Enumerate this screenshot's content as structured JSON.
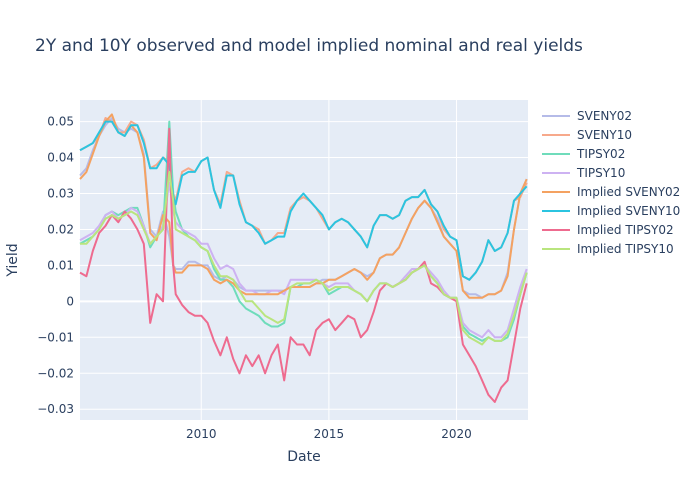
{
  "chart_data": {
    "type": "line",
    "title": "2Y and 10Y observed and model implied nominal and real yields",
    "xlabel": "Date",
    "ylabel": "Yield",
    "xlim": [
      2005.25,
      2022.8
    ],
    "ylim": [
      -0.033,
      0.056
    ],
    "x_ticks": [
      2010,
      2015,
      2020
    ],
    "x_tick_labels": [
      "2010",
      "2015",
      "2020"
    ],
    "y_ticks": [
      -0.03,
      -0.02,
      -0.01,
      0,
      0.01,
      0.02,
      0.03,
      0.04,
      0.05
    ],
    "y_tick_labels": [
      "−0.03",
      "−0.02",
      "−0.01",
      "0",
      "0.01",
      "0.02",
      "0.03",
      "0.04",
      "0.05"
    ],
    "grid": true,
    "legend_position": "right",
    "x": [
      2005.25,
      2005.5,
      2005.75,
      2006.0,
      2006.25,
      2006.5,
      2006.75,
      2007.0,
      2007.25,
      2007.5,
      2007.75,
      2008.0,
      2008.25,
      2008.5,
      2008.75,
      2008.9,
      2009.0,
      2009.25,
      2009.5,
      2009.75,
      2010.0,
      2010.25,
      2010.5,
      2010.75,
      2011.0,
      2011.25,
      2011.5,
      2011.75,
      2012.0,
      2012.25,
      2012.5,
      2012.75,
      2013.0,
      2013.25,
      2013.5,
      2013.75,
      2014.0,
      2014.25,
      2014.5,
      2014.75,
      2015.0,
      2015.25,
      2015.5,
      2015.75,
      2016.0,
      2016.25,
      2016.5,
      2016.75,
      2017.0,
      2017.25,
      2017.5,
      2017.75,
      2018.0,
      2018.25,
      2018.5,
      2018.75,
      2019.0,
      2019.25,
      2019.5,
      2019.75,
      2020.0,
      2020.25,
      2020.5,
      2020.75,
      2021.0,
      2021.25,
      2021.5,
      2021.75,
      2022.0,
      2022.25,
      2022.5,
      2022.75
    ],
    "series": [
      {
        "name": "SVENY02",
        "color": "#b5bbe8",
        "values": [
          0.035,
          0.037,
          0.042,
          0.046,
          0.049,
          0.051,
          0.048,
          0.047,
          0.048,
          0.047,
          0.041,
          0.02,
          0.018,
          0.025,
          0.018,
          0.01,
          0.009,
          0.009,
          0.011,
          0.011,
          0.01,
          0.01,
          0.007,
          0.006,
          0.007,
          0.006,
          0.004,
          0.003,
          0.003,
          0.003,
          0.003,
          0.003,
          0.003,
          0.003,
          0.004,
          0.004,
          0.004,
          0.004,
          0.005,
          0.006,
          0.006,
          0.006,
          0.007,
          0.008,
          0.009,
          0.008,
          0.007,
          0.008,
          0.012,
          0.013,
          0.013,
          0.015,
          0.019,
          0.023,
          0.026,
          0.028,
          0.026,
          0.023,
          0.018,
          0.016,
          0.014,
          0.003,
          0.002,
          0.002,
          0.001,
          0.002,
          0.002,
          0.003,
          0.008,
          0.02,
          0.03,
          0.034
        ]
      },
      {
        "name": "SVENY10",
        "color": "#f7a98b",
        "values": [
          0.042,
          0.043,
          0.044,
          0.046,
          0.051,
          0.05,
          0.047,
          0.047,
          0.05,
          0.049,
          0.045,
          0.037,
          0.038,
          0.04,
          0.039,
          0.03,
          0.028,
          0.036,
          0.037,
          0.036,
          0.039,
          0.04,
          0.031,
          0.027,
          0.036,
          0.035,
          0.028,
          0.022,
          0.021,
          0.02,
          0.016,
          0.017,
          0.019,
          0.019,
          0.026,
          0.028,
          0.029,
          0.028,
          0.026,
          0.023,
          0.02,
          0.022,
          0.023,
          0.022,
          0.02,
          0.018,
          0.015,
          0.021,
          0.024,
          0.024,
          0.023,
          0.024,
          0.028,
          0.029,
          0.029,
          0.031,
          0.027,
          0.025,
          0.02,
          0.018,
          0.017,
          0.007,
          0.006,
          0.008,
          0.011,
          0.017,
          0.014,
          0.015,
          0.019,
          0.028,
          0.029,
          0.033
        ]
      },
      {
        "name": "TIPSY02",
        "color": "#6fdcbb",
        "values": [
          0.016,
          0.017,
          0.018,
          0.02,
          0.024,
          0.025,
          0.024,
          0.025,
          0.026,
          0.026,
          0.021,
          0.015,
          0.018,
          0.02,
          0.05,
          0.03,
          0.025,
          0.02,
          0.018,
          0.017,
          0.015,
          0.014,
          0.009,
          0.006,
          0.006,
          0.004,
          0.0,
          -0.002,
          -0.003,
          -0.004,
          -0.006,
          -0.007,
          -0.007,
          -0.006,
          0.004,
          0.004,
          0.005,
          0.005,
          0.006,
          0.005,
          0.002,
          0.003,
          0.004,
          0.004,
          0.003,
          0.002,
          0.0,
          0.003,
          0.005,
          0.005,
          0.004,
          0.005,
          0.006,
          0.008,
          0.009,
          0.01,
          0.007,
          0.005,
          0.002,
          0.001,
          0.001,
          -0.007,
          -0.009,
          -0.01,
          -0.011,
          -0.01,
          -0.011,
          -0.011,
          -0.01,
          -0.005,
          0.002,
          0.008
        ]
      },
      {
        "name": "TIPSY10",
        "color": "#cdb2f2",
        "values": [
          0.017,
          0.018,
          0.019,
          0.021,
          0.024,
          0.025,
          0.023,
          0.024,
          0.026,
          0.025,
          0.021,
          0.016,
          0.018,
          0.021,
          0.033,
          0.025,
          0.022,
          0.02,
          0.019,
          0.018,
          0.016,
          0.016,
          0.012,
          0.009,
          0.01,
          0.009,
          0.005,
          0.003,
          0.003,
          0.002,
          0.002,
          0.003,
          0.003,
          0.002,
          0.006,
          0.006,
          0.006,
          0.006,
          0.006,
          0.005,
          0.004,
          0.005,
          0.005,
          0.005,
          0.003,
          0.002,
          0.0,
          0.003,
          0.005,
          0.005,
          0.004,
          0.005,
          0.007,
          0.009,
          0.009,
          0.01,
          0.008,
          0.006,
          0.003,
          0.001,
          0.001,
          -0.006,
          -0.008,
          -0.009,
          -0.01,
          -0.008,
          -0.01,
          -0.01,
          -0.008,
          -0.002,
          0.004,
          0.009
        ]
      },
      {
        "name": "Implied SVENY02",
        "color": "#f4a261",
        "values": [
          0.034,
          0.036,
          0.041,
          0.046,
          0.05,
          0.052,
          0.047,
          0.046,
          0.049,
          0.047,
          0.04,
          0.019,
          0.017,
          0.024,
          0.022,
          0.01,
          0.008,
          0.008,
          0.01,
          0.01,
          0.01,
          0.009,
          0.006,
          0.005,
          0.006,
          0.005,
          0.003,
          0.002,
          0.002,
          0.002,
          0.002,
          0.002,
          0.002,
          0.003,
          0.004,
          0.004,
          0.004,
          0.004,
          0.005,
          0.005,
          0.006,
          0.006,
          0.007,
          0.008,
          0.009,
          0.008,
          0.006,
          0.008,
          0.012,
          0.013,
          0.013,
          0.015,
          0.019,
          0.023,
          0.026,
          0.028,
          0.026,
          0.022,
          0.018,
          0.016,
          0.014,
          0.003,
          0.001,
          0.001,
          0.001,
          0.002,
          0.002,
          0.003,
          0.007,
          0.02,
          0.03,
          0.034
        ]
      },
      {
        "name": "Implied SVENY10",
        "color": "#2bc4e0",
        "values": [
          0.042,
          0.043,
          0.044,
          0.047,
          0.05,
          0.05,
          0.047,
          0.046,
          0.049,
          0.049,
          0.044,
          0.037,
          0.037,
          0.04,
          0.038,
          0.029,
          0.027,
          0.035,
          0.036,
          0.036,
          0.039,
          0.04,
          0.031,
          0.026,
          0.035,
          0.035,
          0.027,
          0.022,
          0.021,
          0.019,
          0.016,
          0.017,
          0.018,
          0.018,
          0.025,
          0.028,
          0.03,
          0.028,
          0.026,
          0.024,
          0.02,
          0.022,
          0.023,
          0.022,
          0.02,
          0.018,
          0.015,
          0.021,
          0.024,
          0.024,
          0.023,
          0.024,
          0.028,
          0.029,
          0.029,
          0.031,
          0.027,
          0.025,
          0.021,
          0.018,
          0.017,
          0.007,
          0.006,
          0.008,
          0.011,
          0.017,
          0.014,
          0.015,
          0.019,
          0.028,
          0.03,
          0.032
        ]
      },
      {
        "name": "Implied TIPSY02",
        "color": "#ee6b8f",
        "values": [
          0.008,
          0.007,
          0.014,
          0.019,
          0.021,
          0.024,
          0.022,
          0.025,
          0.023,
          0.02,
          0.016,
          -0.006,
          0.002,
          0.0,
          0.048,
          0.01,
          0.002,
          -0.001,
          -0.003,
          -0.004,
          -0.004,
          -0.006,
          -0.011,
          -0.015,
          -0.01,
          -0.016,
          -0.02,
          -0.015,
          -0.018,
          -0.015,
          -0.02,
          -0.015,
          -0.012,
          -0.022,
          -0.01,
          -0.012,
          -0.012,
          -0.015,
          -0.008,
          -0.006,
          -0.005,
          -0.008,
          -0.006,
          -0.004,
          -0.005,
          -0.01,
          -0.008,
          -0.003,
          0.003,
          0.005,
          0.004,
          0.005,
          0.006,
          0.008,
          0.009,
          0.011,
          0.005,
          0.004,
          0.002,
          0.001,
          0.0,
          -0.012,
          -0.015,
          -0.018,
          -0.022,
          -0.026,
          -0.028,
          -0.024,
          -0.022,
          -0.012,
          -0.002,
          0.005
        ]
      },
      {
        "name": "Implied TIPSY10",
        "color": "#b9e57e",
        "values": [
          0.016,
          0.016,
          0.018,
          0.02,
          0.023,
          0.024,
          0.023,
          0.024,
          0.025,
          0.024,
          0.02,
          0.016,
          0.018,
          0.02,
          0.036,
          0.028,
          0.02,
          0.019,
          0.018,
          0.017,
          0.015,
          0.014,
          0.01,
          0.007,
          0.007,
          0.006,
          0.003,
          0.0,
          0.0,
          -0.002,
          -0.004,
          -0.005,
          -0.006,
          -0.005,
          0.004,
          0.005,
          0.005,
          0.005,
          0.006,
          0.005,
          0.003,
          0.004,
          0.004,
          0.004,
          0.003,
          0.002,
          0.0,
          0.003,
          0.005,
          0.005,
          0.004,
          0.005,
          0.006,
          0.008,
          0.009,
          0.01,
          0.007,
          0.005,
          0.002,
          0.001,
          0.001,
          -0.008,
          -0.01,
          -0.011,
          -0.012,
          -0.01,
          -0.011,
          -0.011,
          -0.009,
          -0.004,
          0.002,
          0.008
        ]
      }
    ]
  }
}
